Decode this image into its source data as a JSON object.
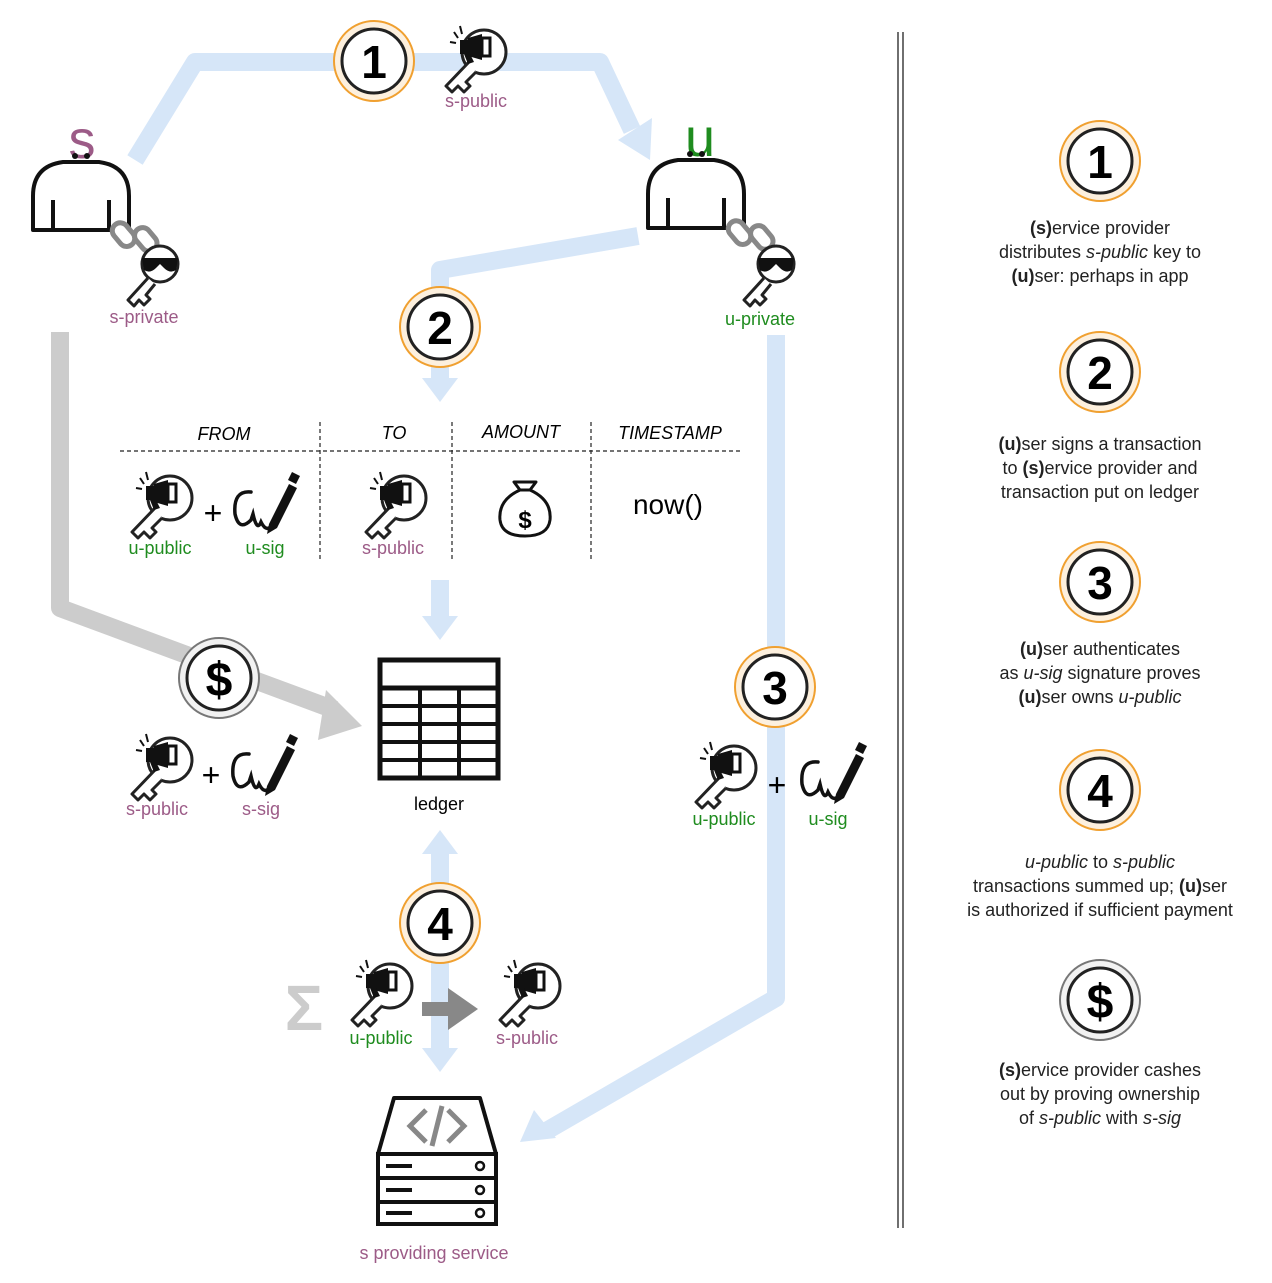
{
  "diagram": {
    "actor_s_letter": "s",
    "actor_u_letter": "u",
    "labels": {
      "s_private": "s-private",
      "u_private": "u-private",
      "step1_key": "s-public",
      "tx_from_key": "u-public",
      "tx_from_sig": "u-sig",
      "tx_to_key": "s-public",
      "tx_now": "now()",
      "cashout_key": "s-public",
      "cashout_sig": "s-sig",
      "auth_key": "u-public",
      "auth_sig": "u-sig",
      "ledger": "ledger",
      "sum_from": "u-public",
      "sum_to": "s-public",
      "service": "s providing service"
    },
    "table_headers": [
      "FROM",
      "TO",
      "AMOUNT",
      "TIMESTAMP"
    ],
    "steps": [
      "1",
      "2",
      "3",
      "4"
    ],
    "dollar": "$",
    "plus": "+",
    "sigma": "Σ"
  },
  "sidebar": {
    "items": [
      {
        "badge": "1",
        "lines": [
          [
            {
              "b": "(s)"
            },
            {
              "t": "ervice provider"
            }
          ],
          [
            {
              "t": "distributes "
            },
            {
              "i": "s-public"
            },
            {
              "t": " key to"
            }
          ],
          [
            {
              "b": "(u)"
            },
            {
              "t": "ser: perhaps in app"
            }
          ]
        ]
      },
      {
        "badge": "2",
        "lines": [
          [
            {
              "b": "(u)"
            },
            {
              "t": "ser signs a transaction"
            }
          ],
          [
            {
              "t": "to "
            },
            {
              "b": "(s)"
            },
            {
              "t": "ervice provider and"
            }
          ],
          [
            {
              "t": "transaction put on ledger"
            }
          ]
        ]
      },
      {
        "badge": "3",
        "lines": [
          [
            {
              "b": "(u)"
            },
            {
              "t": "ser authenticates"
            }
          ],
          [
            {
              "t": "as "
            },
            {
              "i": "u-sig"
            },
            {
              "t": " signature proves"
            }
          ],
          [
            {
              "b": "(u)"
            },
            {
              "t": "ser owns "
            },
            {
              "i": "u-public"
            }
          ]
        ]
      },
      {
        "badge": "4",
        "lines": [
          [
            {
              "i": "u-public"
            },
            {
              "t": " to "
            },
            {
              "i": "s-public"
            }
          ],
          [
            {
              "t": "transactions summed up; "
            },
            {
              "b": "(u)"
            },
            {
              "t": "ser"
            }
          ],
          [
            {
              "t": "is authorized if sufficient payment"
            }
          ]
        ]
      },
      {
        "badge": "$",
        "lines": [
          [
            {
              "b": "(s)"
            },
            {
              "t": "ervice provider cashes"
            }
          ],
          [
            {
              "t": "out by proving ownership"
            }
          ],
          [
            {
              "t": "of "
            },
            {
              "i": "s-public"
            },
            {
              "t": " with "
            },
            {
              "i": "s-sig"
            }
          ]
        ]
      }
    ]
  },
  "colors": {
    "flow_blue": "#d6e6f8",
    "flow_gray": "#cccccc",
    "badge_ring": "#f0a030",
    "purple": "#9c5b87",
    "green": "#1f8c1f"
  }
}
